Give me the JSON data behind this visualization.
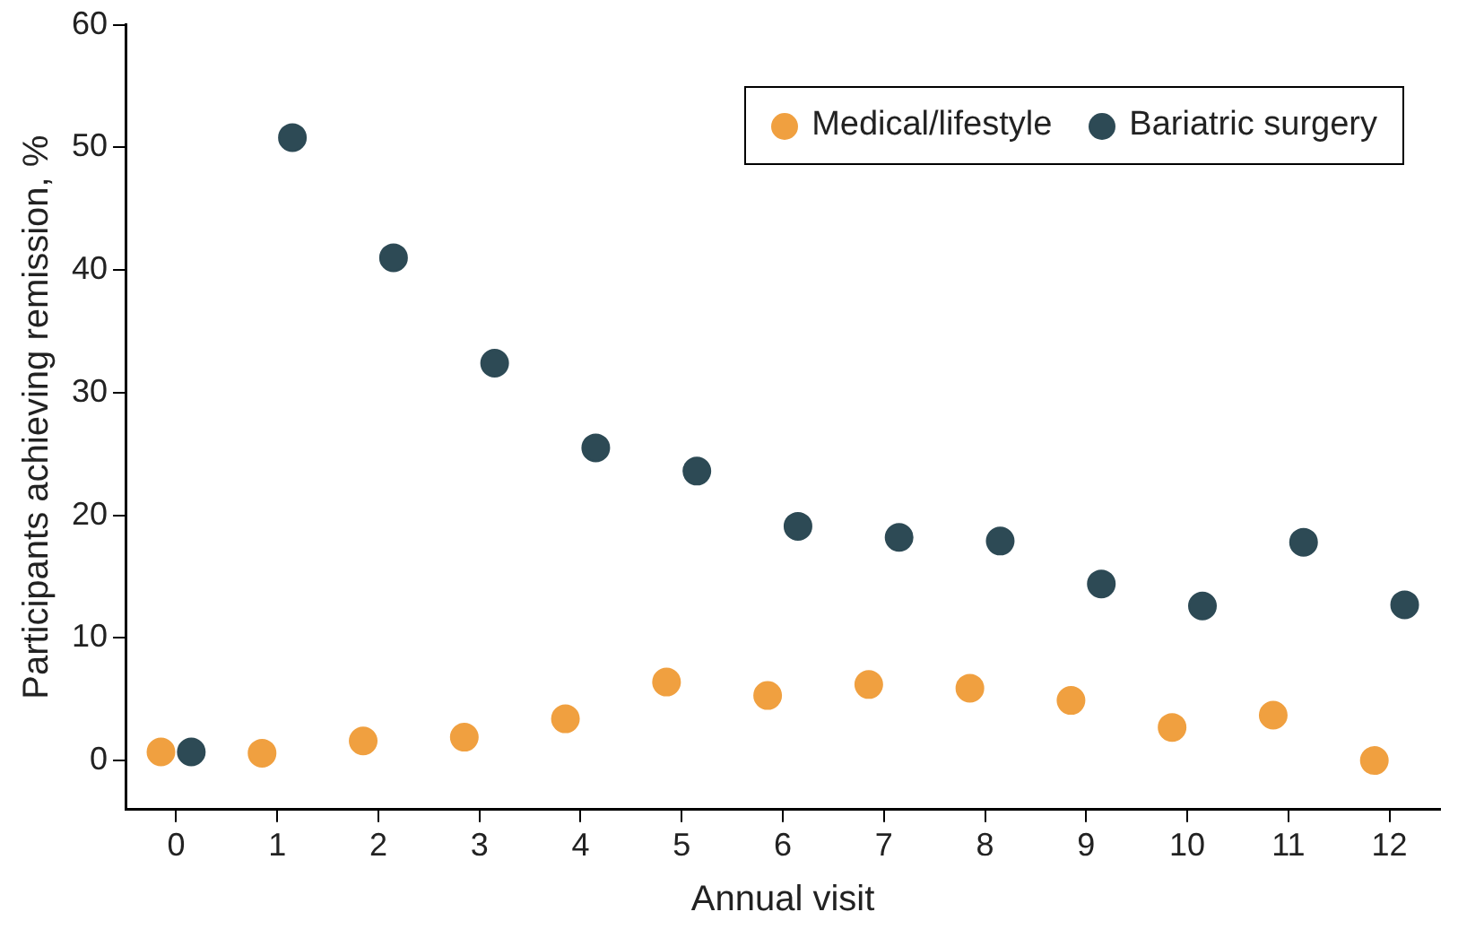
{
  "chart_data": {
    "type": "scatter",
    "xlabel": "Annual visit",
    "ylabel": "Participants achieving remission, %",
    "xlim": [
      -0.5,
      12.5
    ],
    "ylim": [
      -4,
      60
    ],
    "xticks": [
      0,
      1,
      2,
      3,
      4,
      5,
      6,
      7,
      8,
      9,
      10,
      11,
      12
    ],
    "yticks": [
      0,
      10,
      20,
      30,
      40,
      50,
      60
    ],
    "grid": false,
    "legend": "top right",
    "marker": "circle",
    "series": [
      {
        "name": "Medical/lifestyle",
        "color": "#f0a040",
        "x": [
          -0.15,
          0.85,
          1.85,
          2.85,
          3.85,
          4.85,
          5.85,
          6.85,
          7.85,
          8.85,
          9.85,
          10.85,
          11.85
        ],
        "values": [
          0.7,
          0.6,
          1.6,
          1.9,
          3.4,
          6.4,
          5.3,
          6.2,
          5.9,
          4.9,
          2.7,
          3.7,
          0
        ]
      },
      {
        "name": "Bariatric surgery",
        "color": "#2d4a55",
        "x": [
          0.15,
          1.15,
          2.15,
          3.15,
          4.15,
          5.15,
          6.15,
          7.15,
          8.15,
          9.15,
          10.15,
          11.15,
          12.15
        ],
        "values": [
          0.7,
          50.8,
          41,
          32.4,
          25.5,
          23.6,
          19.1,
          18.2,
          17.9,
          14.4,
          12.6,
          17.8,
          12.7
        ]
      }
    ]
  }
}
